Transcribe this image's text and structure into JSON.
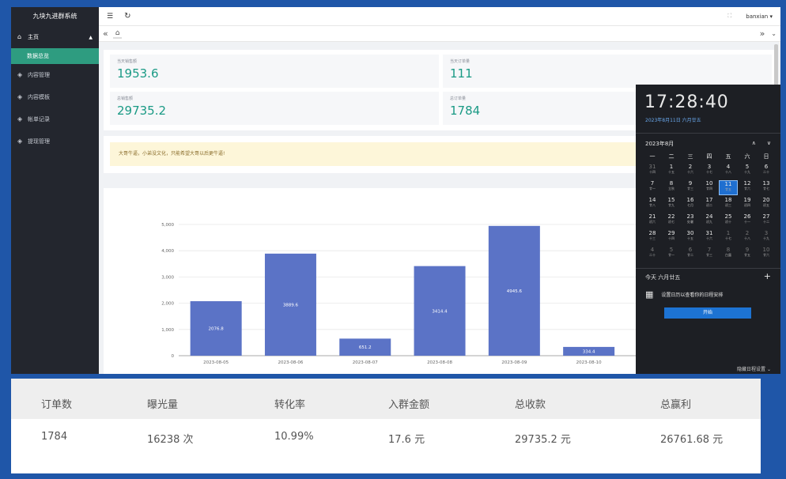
{
  "app": {
    "title": "九块九进群系统"
  },
  "sidebar": {
    "items": [
      {
        "label": "主页",
        "icon": "home-icon"
      },
      {
        "label": "数据总览"
      },
      {
        "label": "内容管理",
        "icon": "shield-icon"
      },
      {
        "label": "内容模板",
        "icon": "shield-icon"
      },
      {
        "label": "帐单记录",
        "icon": "shield-icon"
      },
      {
        "label": "提现管理",
        "icon": "shield-icon"
      }
    ]
  },
  "topbar": {
    "user": "banxian"
  },
  "stats": [
    {
      "label": "当天销售额",
      "value": "1953.6"
    },
    {
      "label": "当天订单量",
      "value": "111"
    },
    {
      "label": "总销售额",
      "value": "29735.2"
    },
    {
      "label": "总订单量",
      "value": "1784"
    }
  ],
  "notice": "大哥牛逼，小弟没文化，只能希望大哥以后更牛逼!",
  "chart_data": {
    "type": "bar",
    "categories": [
      "2023-08-05",
      "2023-08-06",
      "2023-08-07",
      "2023-08-08",
      "2023-08-09",
      "2023-08-10"
    ],
    "values": [
      2076.8,
      3889.6,
      651.2,
      3414.4,
      4945.6,
      334.4
    ],
    "data_labels": [
      "2076.8",
      "3889.6",
      "651.2",
      "3414.4",
      "4945.6",
      "334.4"
    ],
    "yticks": [
      "0",
      "1,000",
      "2,000",
      "3,000",
      "4,000",
      "5,000"
    ],
    "ylim": [
      0,
      5000
    ],
    "color": "#5b73c6"
  },
  "calendar": {
    "time": "17:28:40",
    "date": "2023年8月11日 六月廿五",
    "month": "2023年8月",
    "weekdays": [
      "一",
      "二",
      "三",
      "四",
      "五",
      "六",
      "日"
    ],
    "days": [
      [
        "31",
        "十四"
      ],
      [
        "1",
        "十五"
      ],
      [
        "2",
        "十六"
      ],
      [
        "3",
        "十七"
      ],
      [
        "4",
        "十八"
      ],
      [
        "5",
        "十九"
      ],
      [
        "6",
        "二十"
      ],
      [
        "7",
        "廿一"
      ],
      [
        "8",
        "立秋"
      ],
      [
        "9",
        "廿三"
      ],
      [
        "10",
        "廿四"
      ],
      [
        "11",
        "廿五"
      ],
      [
        "12",
        "廿六"
      ],
      [
        "13",
        "廿七"
      ],
      [
        "14",
        "廿八"
      ],
      [
        "15",
        "廿九"
      ],
      [
        "16",
        "七月"
      ],
      [
        "17",
        "初二"
      ],
      [
        "18",
        "初三"
      ],
      [
        "19",
        "初四"
      ],
      [
        "20",
        "初五"
      ],
      [
        "21",
        "初六"
      ],
      [
        "22",
        "初七"
      ],
      [
        "23",
        "处暑"
      ],
      [
        "24",
        "初九"
      ],
      [
        "25",
        "初十"
      ],
      [
        "26",
        "十一"
      ],
      [
        "27",
        "十二"
      ],
      [
        "28",
        "十三"
      ],
      [
        "29",
        "十四"
      ],
      [
        "30",
        "十五"
      ],
      [
        "31",
        "十六"
      ],
      [
        "1",
        "十七"
      ],
      [
        "2",
        "十八"
      ],
      [
        "3",
        "十九"
      ],
      [
        "4",
        "二十"
      ],
      [
        "5",
        "廿一"
      ],
      [
        "6",
        "廿二"
      ],
      [
        "7",
        "廿三"
      ],
      [
        "8",
        "白露"
      ],
      [
        "9",
        "廿五"
      ],
      [
        "10",
        "廿六"
      ]
    ],
    "today_label": "今天 六月廿五",
    "agenda_text": "设置日历以查看你的日程安排",
    "start_button": "开始",
    "hide_label": "隐藏日程设置"
  },
  "summary": {
    "headers": [
      "订单数",
      "曝光量",
      "转化率",
      "入群金额",
      "总收款",
      "总赢利"
    ],
    "values": [
      "1784",
      "16238 次",
      "10.99%",
      "17.6 元",
      "29735.2 元",
      "26761.68 元"
    ]
  }
}
